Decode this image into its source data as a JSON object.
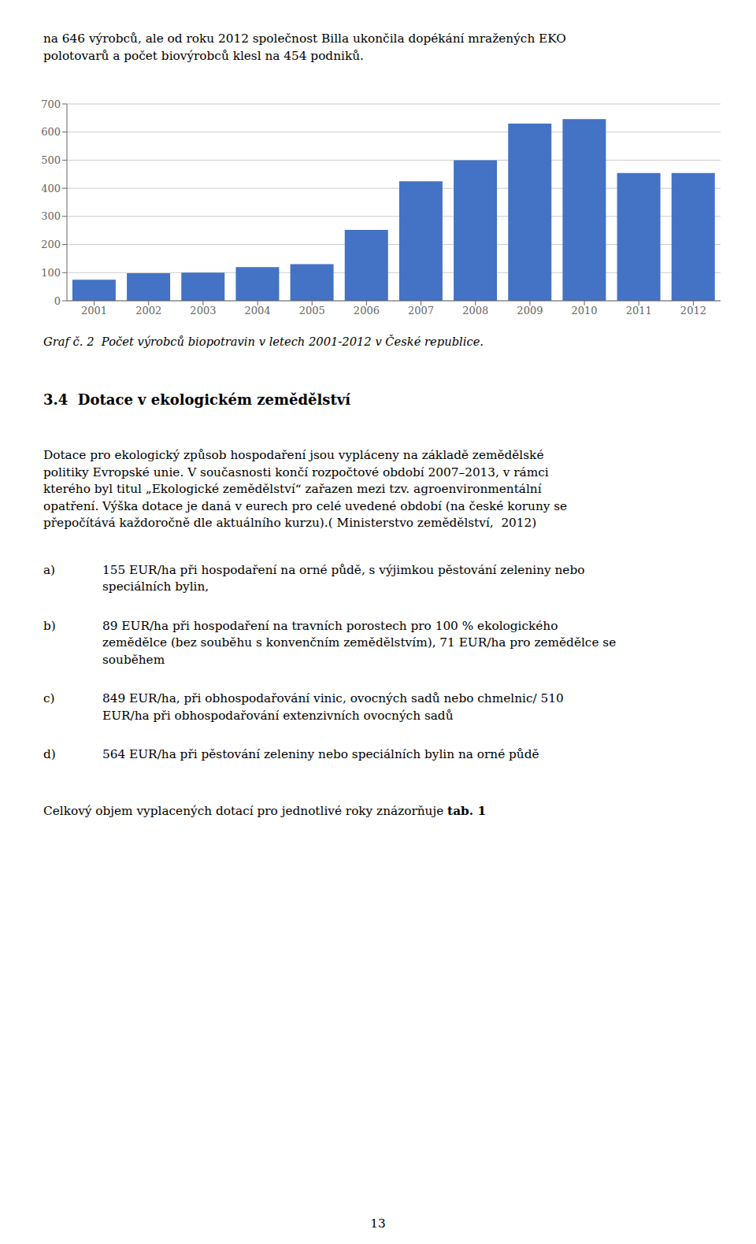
{
  "chart_data": {
    "type": "bar",
    "categories": [
      "2001",
      "2002",
      "2003",
      "2004",
      "2005",
      "2006",
      "2007",
      "2008",
      "2009",
      "2010",
      "2011",
      "2012"
    ],
    "values": [
      75,
      98,
      100,
      120,
      130,
      252,
      425,
      500,
      630,
      646,
      454,
      454
    ],
    "color": "#4472C4",
    "ylim": [
      0,
      700
    ],
    "yticks": [
      0,
      100,
      200,
      300,
      400,
      500,
      600,
      700
    ],
    "grid": true,
    "annotations": [
      "na 646 výrobců, ale od roku 2012 společnost Billa ukončila dopékání mražených EKO",
      "polotovarů a počet biovýrobců klesl na 454 podniků.",
      "Graf č. 2  Počet výrobců biopotravin v letech 2001-2012 v České republice.",
      "3.4  Dotace v ekologickém zemědělství",
      "Dotace pro ekologický způsob hospodaření jsou vypláceny na základě zemědělské",
      "politiky Evropské unie. V současnosti končí rozpočtové období 2007–2013, v rámci",
      "kterého byl titul „Ekologické zemědělství“ zařazen mezi tzv. agroenvironmentální",
      "opatření. Výška dotace je daná v eurech pro celé uvedené období (na české koruny se",
      "přepočítává každoročně dle aktuálního kurzu).( Ministerstvo zemědělství,  2012)",
      "a)",
      "155 EUR/ha při hospodaření na orné půdě, s výjimkou pěstování zeleniny nebo",
      "speciálních bylin,",
      "b)",
      "89 EUR/ha při hospodaření na travních porostech pro 100 % ekologického",
      "zemědělce (bez souběhu s konvenčním zemědělstvím), 71 EUR/ha pro zemědělce se",
      "souběhem",
      "c)",
      "849 EUR/ha, při obhospodařování vinic, ovocných sadů nebo chmelnic/ 510",
      "EUR/ha při obhospodařování extenzivních ovocných sadů",
      "d)",
      "564 EUR/ha při pěstování zeleniny nebo speciálních bylin na orné půdě",
      "Celkový objem vyplacených dotací pro jednotlivé roky znázorňuje ",
      "tab. 1",
      "13"
    ]
  }
}
